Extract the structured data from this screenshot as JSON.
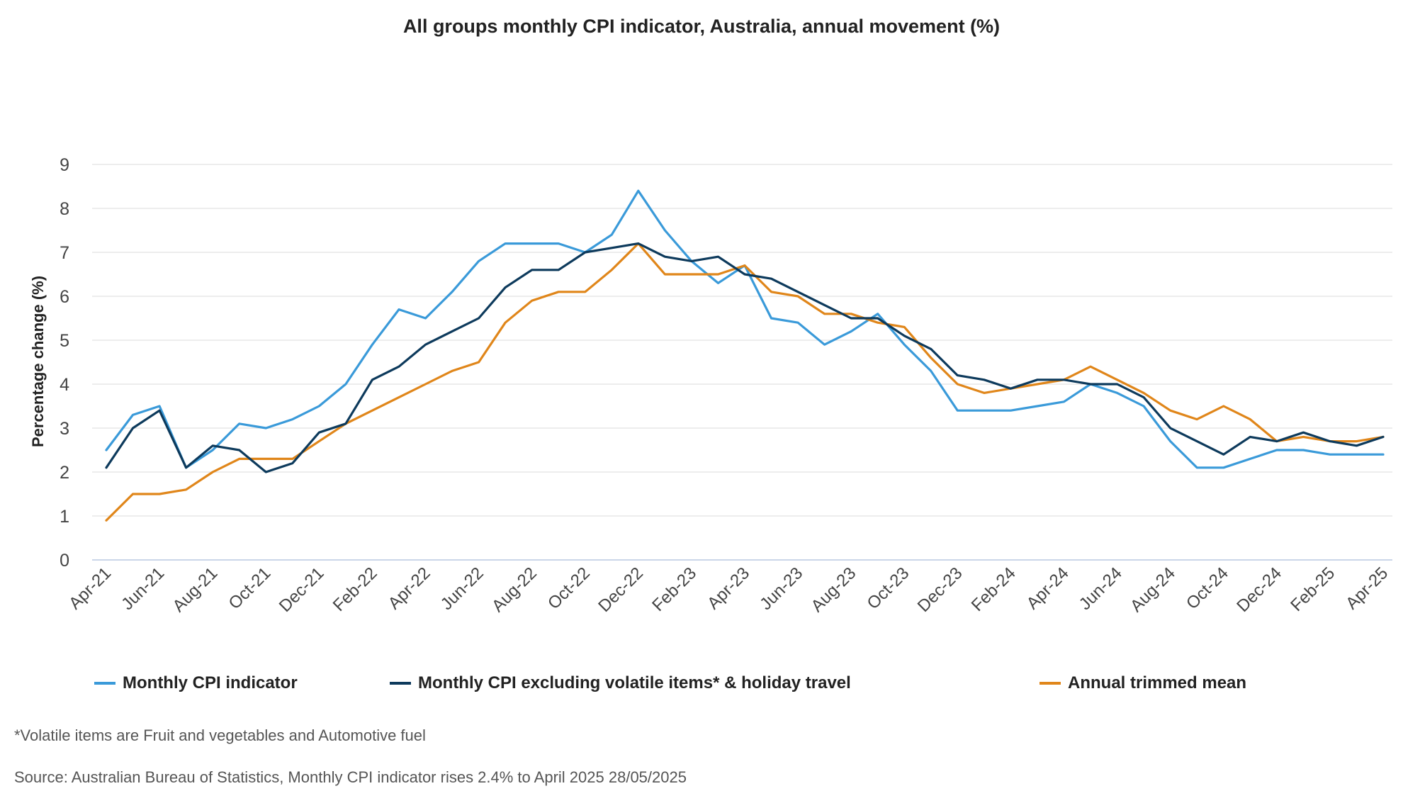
{
  "chart_data": {
    "type": "line",
    "title": "All groups monthly CPI indicator, Australia, annual movement (%)",
    "ylabel": "Percentage change (%)",
    "xlabel": "",
    "ylim": [
      0,
      9
    ],
    "yticks": [
      0,
      1,
      2,
      3,
      4,
      5,
      6,
      7,
      8,
      9
    ],
    "grid": true,
    "legend_position": "bottom",
    "x": [
      "Apr-21",
      "May-21",
      "Jun-21",
      "Jul-21",
      "Aug-21",
      "Sep-21",
      "Oct-21",
      "Nov-21",
      "Dec-21",
      "Jan-22",
      "Feb-22",
      "Mar-22",
      "Apr-22",
      "May-22",
      "Jun-22",
      "Jul-22",
      "Aug-22",
      "Sep-22",
      "Oct-22",
      "Nov-22",
      "Dec-22",
      "Jan-23",
      "Feb-23",
      "Mar-23",
      "Apr-23",
      "May-23",
      "Jun-23",
      "Jul-23",
      "Aug-23",
      "Sep-23",
      "Oct-23",
      "Nov-23",
      "Dec-23",
      "Jan-24",
      "Feb-24",
      "Mar-24",
      "Apr-24",
      "May-24",
      "Jun-24",
      "Jul-24",
      "Aug-24",
      "Sep-24",
      "Oct-24",
      "Nov-24",
      "Dec-24",
      "Jan-25",
      "Feb-25",
      "Mar-25",
      "Apr-25"
    ],
    "x_tick_labels": [
      "Apr-21",
      "Jun-21",
      "Aug-21",
      "Oct-21",
      "Dec-21",
      "Feb-22",
      "Apr-22",
      "Jun-22",
      "Aug-22",
      "Oct-22",
      "Dec-22",
      "Feb-23",
      "Apr-23",
      "Jun-23",
      "Aug-23",
      "Oct-23",
      "Dec-23",
      "Feb-24",
      "Apr-24",
      "Jun-24",
      "Aug-24",
      "Oct-24",
      "Dec-24",
      "Feb-25",
      "Apr-25"
    ],
    "series": [
      {
        "name": "Monthly CPI indicator",
        "color": "#3a9ad9",
        "values": [
          2.5,
          3.3,
          3.5,
          2.1,
          2.5,
          3.1,
          3.0,
          3.2,
          3.5,
          4.0,
          4.9,
          5.7,
          5.5,
          6.1,
          6.8,
          7.2,
          7.2,
          7.2,
          7.0,
          7.4,
          8.4,
          7.5,
          6.8,
          6.3,
          6.7,
          5.5,
          5.4,
          4.9,
          5.2,
          5.6,
          4.9,
          4.3,
          3.4,
          3.4,
          3.4,
          3.5,
          3.6,
          4.0,
          3.8,
          3.5,
          2.7,
          2.1,
          2.1,
          2.3,
          2.5,
          2.5,
          2.4,
          2.4,
          2.4
        ]
      },
      {
        "name": "Monthly CPI excluding volatile items* & holiday travel",
        "color": "#0d3a5c",
        "values": [
          2.1,
          3.0,
          3.4,
          2.1,
          2.6,
          2.5,
          2.0,
          2.2,
          2.9,
          3.1,
          4.1,
          4.4,
          4.9,
          5.2,
          5.5,
          6.2,
          6.6,
          6.6,
          7.0,
          7.1,
          7.2,
          6.9,
          6.8,
          6.9,
          6.5,
          6.4,
          6.1,
          5.8,
          5.5,
          5.5,
          5.1,
          4.8,
          4.2,
          4.1,
          3.9,
          4.1,
          4.1,
          4.0,
          4.0,
          3.7,
          3.0,
          2.7,
          2.4,
          2.8,
          2.7,
          2.9,
          2.7,
          2.6,
          2.8
        ]
      },
      {
        "name": "Annual trimmed mean",
        "color": "#e0861a",
        "values": [
          0.9,
          1.5,
          1.5,
          1.6,
          2.0,
          2.3,
          2.3,
          2.3,
          2.7,
          3.1,
          3.4,
          3.7,
          4.0,
          4.3,
          4.5,
          5.4,
          5.9,
          6.1,
          6.1,
          6.6,
          7.2,
          6.5,
          6.5,
          6.5,
          6.7,
          6.1,
          6.0,
          5.6,
          5.6,
          5.4,
          5.3,
          4.6,
          4.0,
          3.8,
          3.9,
          4.0,
          4.1,
          4.4,
          4.1,
          3.8,
          3.4,
          3.2,
          3.5,
          3.2,
          2.7,
          2.8,
          2.7,
          2.7,
          2.8
        ]
      }
    ]
  },
  "footnote": "*Volatile items are Fruit and vegetables and Automotive fuel",
  "source": "Source: Australian Bureau of Statistics, Monthly CPI indicator rises 2.4% to April 2025 28/05/2025"
}
